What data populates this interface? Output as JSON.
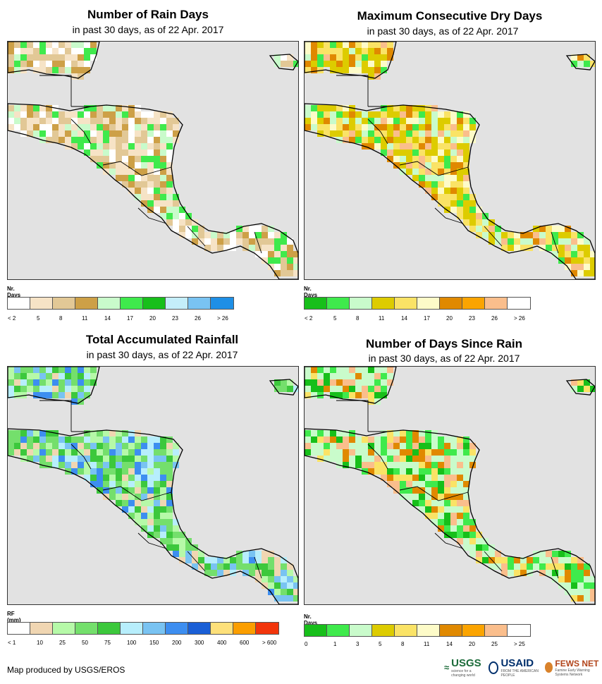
{
  "panels": [
    {
      "id": "rain-days",
      "title": "Number of Rain Days",
      "subtitle": "in past 30 days, as of 22 Apr. 2017",
      "legend_title": "Nr. Days",
      "legend_colors": [
        "#ffffff",
        "#f6e3c6",
        "#e2c896",
        "#cda047",
        "#c9fbcb",
        "#3fea4c",
        "#17bf1a",
        "#c4eefa",
        "#79c3f2",
        "#1e8fe6"
      ],
      "legend_ticks": [
        "< 2",
        "5",
        "8",
        "11",
        "14",
        "17",
        "20",
        "23",
        "26",
        "> 26"
      ],
      "land_palette": [
        "#ffffff",
        "#f6e3c6",
        "#f6e3c6",
        "#e2c896",
        "#e2c896",
        "#cda047",
        "#c9fbcb",
        "#3fea4c"
      ]
    },
    {
      "id": "max-dry-days",
      "title": "Maximum Consecutive Dry Days",
      "subtitle": "in past 30 days, as of 22 Apr. 2017",
      "legend_title": "Nr. Days",
      "legend_colors": [
        "#17bf1a",
        "#3fea4c",
        "#c9fbcb",
        "#ddcc00",
        "#fae366",
        "#fdfbc8",
        "#e08900",
        "#fba400",
        "#fabe8c",
        "#ffffff"
      ],
      "legend_ticks": [
        "< 2",
        "5",
        "8",
        "11",
        "14",
        "17",
        "20",
        "23",
        "26",
        "> 26"
      ],
      "land_palette": [
        "#ddcc00",
        "#ddcc00",
        "#ddcc00",
        "#fae366",
        "#fae366",
        "#fdfbc8",
        "#e08900",
        "#fabe8c",
        "#c9fbcb",
        "#3fea4c"
      ]
    },
    {
      "id": "total-rainfall",
      "title": "Total Accumulated Rainfall",
      "subtitle": "in past 30 days, as of 22 Apr. 2017",
      "legend_title": "RF (mm)",
      "legend_colors": [
        "#ffffff",
        "#f0d6b2",
        "#b6f9a8",
        "#74df6c",
        "#3cc83c",
        "#b7eefc",
        "#79c3f2",
        "#3d8ef0",
        "#1a5fd6",
        "#fde07a",
        "#fb9e00",
        "#f2350b"
      ],
      "legend_ticks": [
        "< 1",
        "10",
        "25",
        "50",
        "75",
        "100",
        "150",
        "200",
        "300",
        "400",
        "600",
        "> 600"
      ],
      "land_palette": [
        "#74df6c",
        "#74df6c",
        "#3cc83c",
        "#b6f9a8",
        "#f0d6b2",
        "#79c3f2",
        "#3d8ef0",
        "#b7eefc"
      ]
    },
    {
      "id": "days-since-rain",
      "title": "Number of Days Since Rain",
      "subtitle": "in past 30 days, as of 22 Apr. 2017",
      "legend_title": "Nr. Days",
      "legend_colors": [
        "#17bf1a",
        "#3fea4c",
        "#c9fbcb",
        "#ddcc00",
        "#fae366",
        "#fdfbc8",
        "#e08900",
        "#fba400",
        "#fabe8c",
        "#ffffff"
      ],
      "legend_ticks": [
        "0",
        "1",
        "3",
        "5",
        "8",
        "11",
        "14",
        "20",
        "25",
        "> 25"
      ],
      "land_palette": [
        "#c9fbcb",
        "#c9fbcb",
        "#c9fbcb",
        "#3fea4c",
        "#17bf1a",
        "#fae366",
        "#e08900",
        "#fabe8c"
      ]
    }
  ],
  "footer": "Map produced by USGS/EROS",
  "logos": {
    "usgs": "USGS",
    "usgs_tagline": "science for a changing world",
    "usaid": "USAID",
    "usaid_tagline": "FROM THE AMERICAN PEOPLE",
    "fews": "FEWS NET",
    "fews_tagline": "Famine Early Warning Systems Network"
  },
  "colors": {
    "ocean": "#e2e2e2",
    "border": "#000000"
  }
}
